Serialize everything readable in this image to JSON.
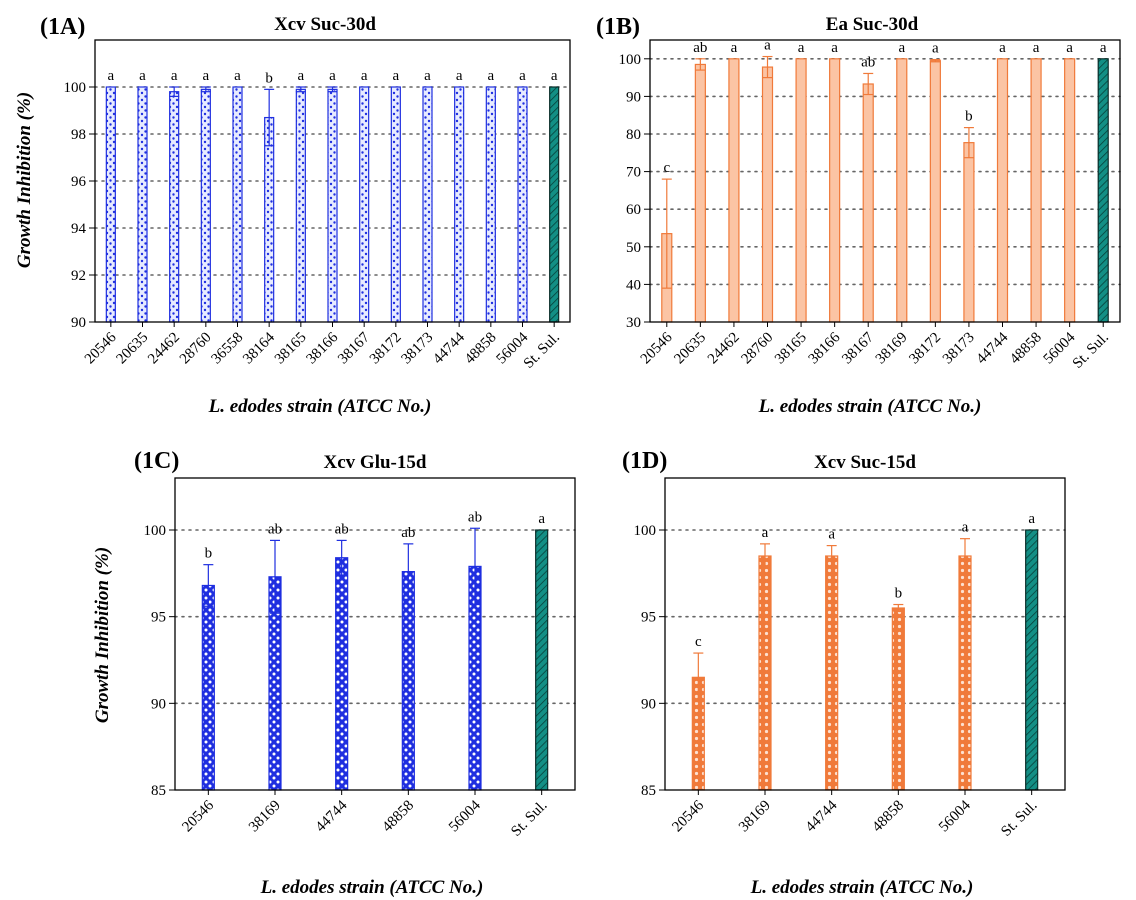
{
  "figure": {
    "panels": [
      {
        "label": "(1A)",
        "title": "Xcv Suc-30d",
        "xlabel": "L. edodes strain (ATCC No.)",
        "ylabel": "Growth Inhibition (%)"
      },
      {
        "label": "(1B)",
        "title": "Ea Suc-30d",
        "xlabel": "L. edodes strain (ATCC No.)",
        "ylabel": ""
      },
      {
        "label": "(1C)",
        "title": "Xcv Glu-15d",
        "xlabel": "L. edodes strain (ATCC No.)",
        "ylabel": "Growth Inhibition (%)"
      },
      {
        "label": "(1D)",
        "title": "Xcv Suc-15d",
        "xlabel": "L. edodes strain (ATCC No.)",
        "ylabel": ""
      }
    ]
  },
  "colors": {
    "blue": "#1f2fe0",
    "blue_fill": "#e7ebff",
    "orange": "#f07a3a",
    "orange_fill": "#fbc4a4",
    "teal": "#138f85",
    "grid": "#666666",
    "axis": "#000000"
  },
  "chart_data": [
    {
      "type": "bar",
      "title": "Xcv Suc-30d",
      "xlabel": "L. edodes strain (ATCC No.)",
      "ylabel": "Growth Inhibition (%)",
      "ylim": [
        90,
        102
      ],
      "yticks": [
        90,
        92,
        94,
        96,
        98,
        100
      ],
      "grid": true,
      "categories": [
        "20546",
        "20635",
        "24462",
        "28760",
        "36558",
        "38164",
        "38165",
        "38166",
        "38167",
        "38172",
        "38173",
        "44744",
        "48858",
        "56004",
        "St. Sul."
      ],
      "values": [
        100,
        100,
        99.8,
        99.9,
        100,
        98.7,
        99.9,
        99.9,
        100,
        100,
        100,
        100,
        100,
        100,
        100
      ],
      "errors": [
        0,
        0,
        0.2,
        0.1,
        0,
        1.2,
        0.1,
        0.1,
        0,
        0,
        0,
        0,
        0,
        0,
        0
      ],
      "significance": [
        "a",
        "a",
        "a",
        "a",
        "a",
        "b",
        "a",
        "a",
        "a",
        "a",
        "a",
        "a",
        "a",
        "a",
        "a"
      ],
      "color": "blue",
      "control_color": "teal"
    },
    {
      "type": "bar",
      "title": "Ea Suc-30d",
      "xlabel": "L. edodes strain (ATCC No.)",
      "ylabel": "",
      "ylim": [
        30,
        105
      ],
      "yticks": [
        30,
        40,
        50,
        60,
        70,
        80,
        90,
        100
      ],
      "grid": true,
      "categories": [
        "20546",
        "20635",
        "24462",
        "28760",
        "38165",
        "38166",
        "38167",
        "38169",
        "38172",
        "38173",
        "44744",
        "48858",
        "56004",
        "St. Sul."
      ],
      "values": [
        53.5,
        98.5,
        100,
        97.8,
        100,
        100,
        93.3,
        100,
        99.5,
        77.7,
        100,
        100,
        100,
        100
      ],
      "errors": [
        14.5,
        1.5,
        0,
        2.8,
        0,
        0,
        2.8,
        0,
        0.3,
        4.0,
        0,
        0,
        0,
        0
      ],
      "significance": [
        "c",
        "ab",
        "a",
        "a",
        "a",
        "a",
        "ab",
        "a",
        "a",
        "b",
        "a",
        "a",
        "a",
        "a"
      ],
      "color": "orange",
      "control_color": "teal"
    },
    {
      "type": "bar",
      "title": "Xcv Glu-15d",
      "xlabel": "L. edodes strain (ATCC No.)",
      "ylabel": "Growth Inhibition (%)",
      "ylim": [
        85,
        103
      ],
      "yticks": [
        85,
        90,
        95,
        100
      ],
      "grid": true,
      "categories": [
        "20546",
        "38169",
        "44744",
        "48858",
        "56004",
        "St. Sul."
      ],
      "values": [
        96.8,
        97.3,
        98.4,
        97.6,
        97.9,
        100
      ],
      "errors": [
        1.2,
        2.1,
        1.0,
        1.6,
        2.2,
        0
      ],
      "significance": [
        "b",
        "ab",
        "ab",
        "ab",
        "ab",
        "a"
      ],
      "color": "blue",
      "control_color": "teal"
    },
    {
      "type": "bar",
      "title": "Xcv Suc-15d",
      "xlabel": "L. edodes strain (ATCC No.)",
      "ylabel": "",
      "ylim": [
        85,
        103
      ],
      "yticks": [
        85,
        90,
        95,
        100
      ],
      "grid": true,
      "categories": [
        "20546",
        "38169",
        "44744",
        "48858",
        "56004",
        "St. Sul."
      ],
      "values": [
        91.5,
        98.5,
        98.5,
        95.5,
        98.5,
        100
      ],
      "errors": [
        1.4,
        0.7,
        0.6,
        0.2,
        1.0,
        0
      ],
      "significance": [
        "c",
        "a",
        "a",
        "b",
        "a",
        "a"
      ],
      "color": "orange",
      "control_color": "teal"
    }
  ]
}
